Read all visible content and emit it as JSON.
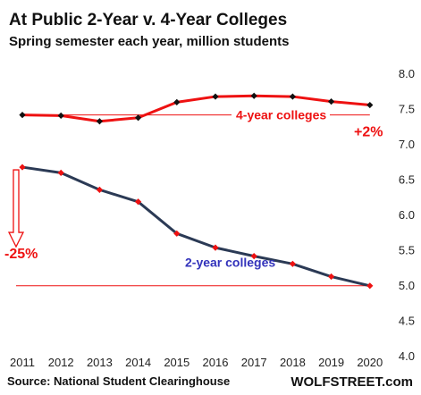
{
  "chart_data": {
    "type": "line",
    "title": "At Public 2-Year v. 4-Year Colleges",
    "subtitle": "Spring semester each year, million students",
    "xlabel": "",
    "ylabel": "",
    "x": [
      "2011",
      "2012",
      "2013",
      "2014",
      "2015",
      "2016",
      "2017",
      "2018",
      "2019",
      "2020"
    ],
    "ylim": [
      4.0,
      8.0
    ],
    "yticks": [
      "4.0",
      "4.5",
      "5.0",
      "5.5",
      "6.0",
      "6.5",
      "7.0",
      "7.5",
      "8.0"
    ],
    "series": [
      {
        "name": "4-year colleges",
        "values": [
          7.41,
          7.4,
          7.32,
          7.37,
          7.59,
          7.67,
          7.68,
          7.67,
          7.6,
          7.55
        ],
        "line_color": "#ee1111",
        "marker_color": "#111111",
        "change_label": "+2%",
        "label_color": "#ee1111"
      },
      {
        "name": "2-year colleges",
        "values": [
          6.67,
          6.59,
          6.35,
          6.18,
          5.73,
          5.53,
          5.41,
          5.3,
          5.12,
          4.99
        ],
        "line_color": "#2b3a55",
        "marker_color": "#ee1111",
        "change_label": "-25%",
        "label_color": "#3333bb"
      }
    ],
    "grid": false,
    "source": "Source: National Student Clearinghouse",
    "brand": "WOLFSTREET.com"
  }
}
